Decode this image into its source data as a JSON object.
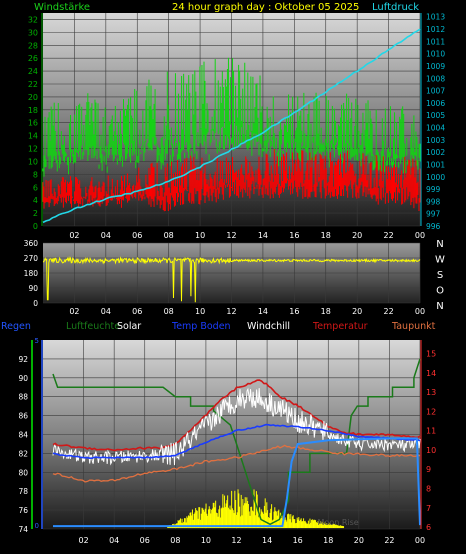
{
  "colors": {
    "wind": "#13d313",
    "gust": "#ff0000",
    "pressure": "#22d8e8",
    "direction": "#ffff00",
    "regen": "#2255ff",
    "luftfeuchte": "#1a7a1a",
    "solar": "#ffff00",
    "temp_boden": "#1a3cff",
    "windchill": "#ffffff",
    "temperatur": "#d01818",
    "taupunkt": "#e07040",
    "grid": "#3a3a3a",
    "axis_left": "#00b000",
    "axis_right": "#00b8d0"
  },
  "header": {
    "left": "Windstärke",
    "center": "24 hour graph day : Oktober 05 2025",
    "right": "Luftdruck"
  },
  "chart_data": [
    {
      "type": "line",
      "x_ticks": [
        "02",
        "04",
        "06",
        "08",
        "10",
        "12",
        "14",
        "16",
        "18",
        "20",
        "22",
        "00"
      ],
      "y_left_ticks": [
        "0",
        "2",
        "4",
        "6",
        "8",
        "10",
        "12",
        "14",
        "16",
        "18",
        "20",
        "22",
        "24",
        "26",
        "28",
        "30",
        "32"
      ],
      "y_right_ticks": [
        "996",
        "997",
        "998",
        "999",
        "1000",
        "1001",
        "1002",
        "1003",
        "1004",
        "1005",
        "1006",
        "1007",
        "1008",
        "1009",
        "1010",
        "1011",
        "1012",
        "1013"
      ],
      "ylim_left": [
        0,
        33
      ],
      "ylim_right": [
        996,
        1013.3
      ],
      "series": [
        {
          "name": "Windstärke",
          "axis": "left",
          "color_key": "wind",
          "base": [
            11,
            12,
            12,
            13,
            12,
            13,
            13,
            14,
            14,
            14,
            15,
            15,
            16,
            15,
            14,
            13,
            13,
            13,
            13,
            13,
            13,
            12,
            12,
            11,
            11
          ],
          "spread": [
            5,
            6,
            6,
            6,
            6,
            6,
            7,
            7,
            8,
            8,
            8,
            9,
            9,
            8,
            7,
            6,
            6,
            6,
            6,
            6,
            6,
            6,
            6,
            6,
            5
          ]
        },
        {
          "name": "Böen",
          "axis": "left",
          "color_key": "gust",
          "base": [
            5,
            6,
            6,
            6,
            6,
            6,
            7,
            7,
            7,
            8,
            8,
            8,
            9,
            9,
            9,
            9,
            9,
            9,
            9,
            9,
            9,
            8,
            8,
            8,
            7
          ],
          "spread": [
            2,
            2,
            2,
            2,
            2,
            2,
            2,
            3,
            3,
            3,
            3,
            3,
            3,
            3,
            3,
            3,
            3,
            3,
            3,
            3,
            3,
            3,
            3,
            3,
            3
          ]
        },
        {
          "name": "Luftdruck",
          "axis": "right",
          "color_key": "pressure",
          "x": [
            0,
            2,
            4,
            6,
            8,
            10,
            12,
            14,
            16,
            18,
            20,
            22,
            24
          ],
          "y": [
            996.3,
            997.4,
            998.2,
            998.8,
            999.6,
            1000.8,
            1002.2,
            1003.6,
            1005.2,
            1006.9,
            1008.6,
            1010.3,
            1012.0
          ]
        }
      ]
    },
    {
      "type": "line",
      "x_ticks": [
        "02",
        "04",
        "06",
        "08",
        "10",
        "12",
        "14",
        "16",
        "18",
        "20",
        "22",
        "00"
      ],
      "y_ticks": [
        "0",
        "90",
        "180",
        "270",
        "360"
      ],
      "ylim": [
        0,
        360
      ],
      "compass": [
        "N",
        "W",
        "S",
        "O",
        "N"
      ],
      "series": [
        {
          "name": "Windrichtung",
          "color_key": "direction",
          "base": 255,
          "noise": 30,
          "drops": [
            {
              "x": 0.3,
              "y": 20
            },
            {
              "x": 8.3,
              "y": 30
            },
            {
              "x": 8.8,
              "y": 10
            },
            {
              "x": 9.4,
              "y": 40
            },
            {
              "x": 9.7,
              "y": 5
            }
          ]
        }
      ]
    },
    {
      "type": "line",
      "x_ticks": [
        "02",
        "04",
        "06",
        "08",
        "10",
        "12",
        "14",
        "16",
        "18",
        "20",
        "22",
        "00"
      ],
      "y_left_ticks": [
        "74",
        "76",
        "78",
        "80",
        "82",
        "84",
        "86",
        "88",
        "90",
        "92"
      ],
      "y_right_ticks": [
        "6",
        "7",
        "8",
        "9",
        "10",
        "11",
        "12",
        "13",
        "14",
        "15"
      ],
      "ylim_left": [
        74,
        94
      ],
      "ylim_right": [
        5.9,
        15.7
      ],
      "regen_ticks": [
        "0",
        "5"
      ],
      "legend": [
        "Regen",
        "Luftfeuchte",
        "Solar",
        "Temp Boden",
        "Windchill",
        "Temperatur",
        "Taupunkt"
      ],
      "annotation": "Moon Rise",
      "series": [
        {
          "name": "Luftfeuchte",
          "axis": "left",
          "color_key": "luftfeuchte",
          "x": [
            0,
            0.3,
            1.2,
            1.2,
            3,
            3,
            4.5,
            4.5,
            7.2,
            7.2,
            8.0,
            9.0,
            9.0,
            10.5,
            10.5,
            11.6,
            12.0,
            12.8,
            13.2,
            13.6,
            14.2,
            14.8,
            15.4,
            15.4,
            16.8,
            16.8,
            19.2,
            19.5,
            19.9,
            20.6,
            20.6,
            22.2,
            22.2,
            23.6,
            23.6,
            24
          ],
          "y": [
            90.4,
            89,
            89,
            89,
            89,
            89,
            89,
            89,
            89,
            89,
            88,
            88,
            87,
            87,
            86.5,
            85,
            83,
            79,
            77,
            75,
            74.5,
            75,
            77,
            80,
            80,
            82,
            82,
            86,
            87,
            87,
            88,
            88,
            89,
            89,
            90,
            92
          ]
        },
        {
          "name": "Temperatur",
          "axis": "right",
          "color_key": "temperatur",
          "x": [
            0,
            2,
            4,
            6,
            7,
            8,
            9,
            10,
            11,
            12,
            13,
            13.5,
            14,
            14.5,
            15,
            16,
            17,
            18,
            19,
            20,
            21,
            22,
            23,
            24
          ],
          "y": [
            10.3,
            10.1,
            10.0,
            10.1,
            10.1,
            10.3,
            11.0,
            11.8,
            12.6,
            13.2,
            13.5,
            13.6,
            13.4,
            13.0,
            12.7,
            12.3,
            11.8,
            11.2,
            10.9,
            10.8,
            10.8,
            10.8,
            10.7,
            10.7
          ]
        },
        {
          "name": "Temp Boden",
          "axis": "right",
          "color_key": "temp_boden",
          "x": [
            0,
            2,
            4,
            6,
            8,
            10,
            12,
            14,
            16,
            18,
            20,
            22,
            24
          ],
          "y": [
            9.8,
            9.6,
            9.6,
            9.6,
            9.7,
            10.4,
            11.0,
            11.3,
            11.2,
            11.0,
            10.7,
            10.6,
            10.5
          ]
        },
        {
          "name": "Windchill",
          "axis": "right",
          "color_key": "windchill",
          "x": [
            0,
            2,
            4,
            6,
            7,
            8,
            9,
            10,
            11,
            12,
            13,
            14,
            15,
            16,
            17,
            18,
            19,
            20,
            21,
            22,
            23,
            24
          ],
          "y": [
            10.0,
            9.6,
            9.6,
            9.7,
            9.7,
            9.8,
            10.5,
            11.2,
            12.0,
            12.6,
            12.8,
            12.5,
            12.1,
            11.5,
            11.2,
            10.8,
            10.5,
            10.3,
            10.3,
            10.3,
            10.2,
            10.3
          ],
          "noise": 0.6
        },
        {
          "name": "Taupunkt",
          "axis": "right",
          "color_key": "taupunkt",
          "x": [
            0,
            2,
            4,
            6,
            8,
            10,
            12,
            13,
            14,
            15,
            16,
            17,
            18,
            19,
            20,
            22,
            24
          ],
          "y": [
            8.8,
            8.4,
            8.4,
            8.8,
            9.0,
            9.4,
            9.6,
            9.8,
            10.0,
            10.2,
            10.1,
            10.0,
            9.9,
            9.8,
            9.8,
            9.7,
            9.7
          ]
        },
        {
          "name": "Regen",
          "axis": "right",
          "color_key": "regen",
          "x": [
            0,
            14.6,
            15.0,
            15.3,
            15.6,
            16.0,
            18.0,
            20.0,
            22.0,
            23.8,
            24
          ],
          "y": [
            6.05,
            6.05,
            6.05,
            7.5,
            9.4,
            10.3,
            10.5,
            10.55,
            10.6,
            10.6,
            6.1
          ]
        },
        {
          "name": "Solar",
          "axis": "right",
          "color_key": "solar",
          "x": [
            7.5,
            8,
            8.5,
            9,
            9.5,
            10,
            10.5,
            11,
            11.5,
            12,
            12.5,
            13,
            13.5,
            14,
            14.5,
            15,
            16,
            17,
            18,
            19
          ],
          "y": [
            6.05,
            6.2,
            6.4,
            6.6,
            6.8,
            6.9,
            7.0,
            7.2,
            7.3,
            7.5,
            7.1,
            7.6,
            7.2,
            7.0,
            6.8,
            6.6,
            6.4,
            6.3,
            6.2,
            6.05
          ]
        }
      ]
    }
  ]
}
